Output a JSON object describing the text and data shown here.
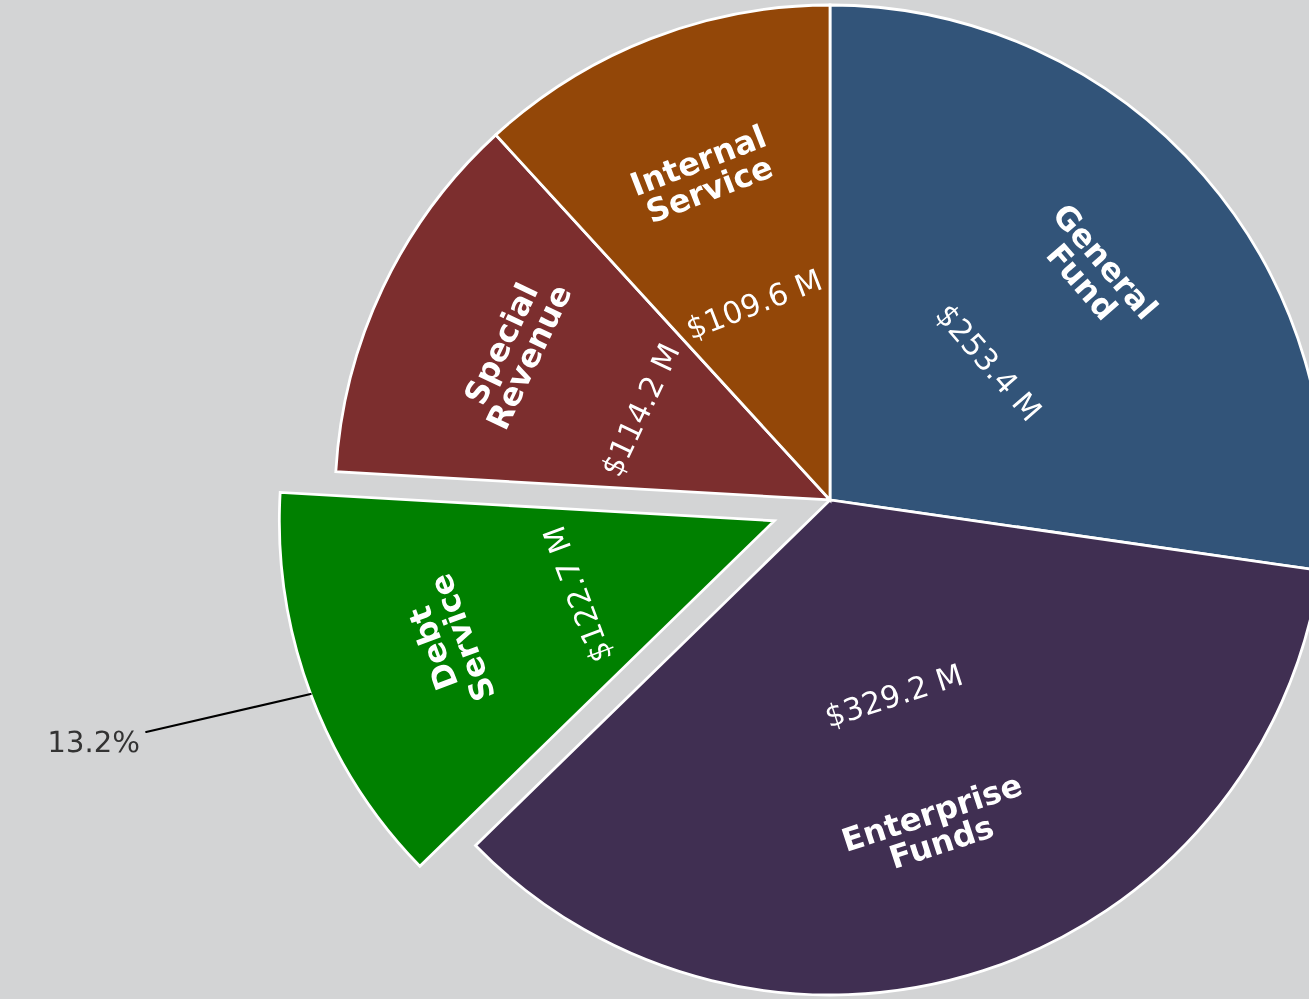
{
  "chart_data": {
    "type": "pie",
    "categories": [
      "General Fund",
      "Enterprise Funds",
      "Debt Service",
      "Special Revenue",
      "Internal Service"
    ],
    "values": [
      253.4,
      329.2,
      122.7,
      114.2,
      109.6
    ],
    "colors": [
      "#325479",
      "#402f52",
      "#008000",
      "#7c2e2e",
      "#934708"
    ],
    "value_labels": [
      "$253.4 M",
      "$329.2 M",
      "$122.7 M",
      "$114.2 M",
      "$109.6 M"
    ],
    "annotations": [
      {
        "text": "13.2%",
        "x": "Debt Service"
      }
    ],
    "legend": false
  }
}
